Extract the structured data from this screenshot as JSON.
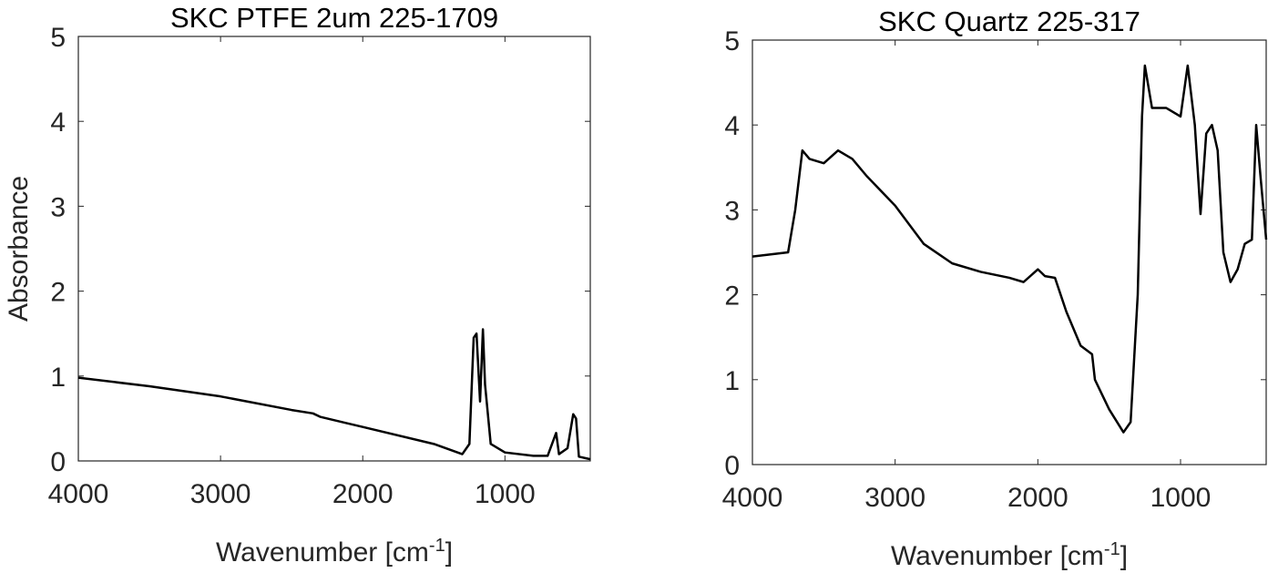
{
  "chart_data": [
    {
      "type": "line",
      "title": "SKC PTFE 2um 225-1709",
      "ylabel": "Absorbance",
      "xlabel": [
        "Wavenumber [cm",
        "-1",
        "]"
      ],
      "xlim": [
        4000,
        400
      ],
      "xticks": [
        4000,
        3000,
        2000,
        1000
      ],
      "ylim": [
        0,
        5
      ],
      "yticks": [
        0,
        1,
        2,
        3,
        4,
        5
      ],
      "series": [
        {
          "color": "#000000",
          "x": [
            4000,
            3500,
            3000,
            2500,
            2350,
            2300,
            2000,
            1500,
            1300,
            1250,
            1220,
            1200,
            1175,
            1155,
            1140,
            1100,
            1000,
            800,
            700,
            640,
            620,
            560,
            520,
            500,
            480,
            400
          ],
          "values": [
            0.98,
            0.88,
            0.76,
            0.6,
            0.56,
            0.52,
            0.4,
            0.2,
            0.08,
            0.2,
            1.45,
            1.5,
            0.7,
            1.55,
            0.9,
            0.2,
            0.1,
            0.06,
            0.06,
            0.33,
            0.08,
            0.15,
            0.55,
            0.5,
            0.05,
            0.02
          ]
        }
      ]
    },
    {
      "type": "line",
      "title": "SKC Quartz 225-317",
      "xlabel": [
        "Wavenumber [cm",
        "-1",
        "]"
      ],
      "xlim": [
        4000,
        400
      ],
      "xticks": [
        4000,
        3000,
        2000,
        1000
      ],
      "ylim": [
        0,
        5
      ],
      "yticks": [
        0,
        1,
        2,
        3,
        4,
        5
      ],
      "series": [
        {
          "color": "#000000",
          "x": [
            4000,
            3750,
            3700,
            3650,
            3600,
            3500,
            3400,
            3300,
            3200,
            3000,
            2800,
            2600,
            2400,
            2200,
            2100,
            2000,
            1950,
            1880,
            1800,
            1700,
            1620,
            1600,
            1500,
            1400,
            1350,
            1300,
            1270,
            1250,
            1200,
            1100,
            1000,
            950,
            900,
            860,
            820,
            780,
            740,
            700,
            650,
            600,
            550,
            500,
            470,
            440,
            400
          ],
          "values": [
            2.45,
            2.5,
            3.0,
            3.7,
            3.6,
            3.55,
            3.7,
            3.6,
            3.4,
            3.05,
            2.6,
            2.37,
            2.27,
            2.2,
            2.15,
            2.3,
            2.22,
            2.2,
            1.8,
            1.4,
            1.3,
            1.0,
            0.65,
            0.38,
            0.5,
            2.0,
            4.1,
            4.7,
            4.2,
            4.2,
            4.1,
            4.7,
            4.0,
            2.95,
            3.9,
            4.0,
            3.7,
            2.5,
            2.15,
            2.3,
            2.6,
            2.65,
            4.0,
            3.4,
            2.65
          ]
        }
      ]
    }
  ]
}
